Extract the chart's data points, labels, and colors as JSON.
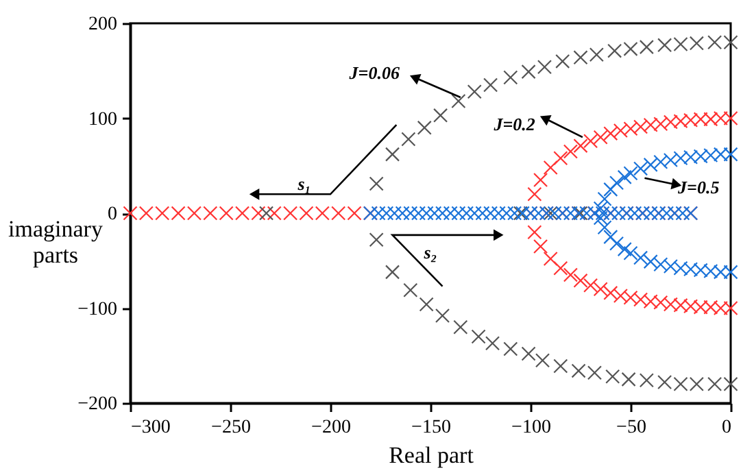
{
  "chart_data": {
    "type": "scatter",
    "xlabel": "Real part",
    "ylabel": "imaginary parts",
    "xlim": [
      -300,
      0
    ],
    "ylim": [
      -200,
      200
    ],
    "xticks": [
      -300,
      -250,
      -200,
      -150,
      -100,
      -50,
      0
    ],
    "yticks": [
      -200,
      -100,
      0,
      100,
      200
    ],
    "marker": "cross",
    "grid": false,
    "annotations": [
      "J=0.06",
      "J=0.2",
      "J=0.5",
      "s₁",
      "s₂"
    ],
    "series": [
      {
        "color": "#ff3333",
        "x": [
          -300,
          -292,
          -284,
          -276,
          -268,
          -260,
          -252,
          -244,
          -236,
          -228,
          -220,
          -212,
          -204,
          -196,
          -188,
          -180,
          -100,
          -92,
          -84,
          -76,
          -68,
          -60,
          -52,
          -44,
          -36,
          -28,
          -20,
          -98,
          -95,
          -90,
          -85,
          -80,
          -75,
          -70,
          -65,
          -60,
          -55,
          -50,
          -45,
          -40,
          -35,
          -30,
          -25,
          -20,
          -15,
          -10,
          -5,
          0,
          -98,
          -95,
          -90,
          -85,
          -80,
          -75,
          -70,
          -65,
          -60,
          -55,
          -50,
          -45,
          -40,
          -35,
          -30,
          -25,
          -20,
          -15,
          -10,
          -5,
          0
        ],
        "values": [
          0,
          0,
          0,
          0,
          0,
          0,
          0,
          0,
          0,
          0,
          0,
          0,
          0,
          0,
          0,
          0,
          0,
          0,
          0,
          0,
          0,
          0,
          0,
          0,
          0,
          0,
          0,
          20,
          35,
          48,
          58,
          65,
          71,
          76,
          80,
          84,
          87,
          89,
          91,
          93,
          94,
          96,
          97,
          98,
          99,
          99,
          100,
          100,
          -20,
          -35,
          -48,
          -58,
          -65,
          -71,
          -76,
          -80,
          -84,
          -87,
          -89,
          -91,
          -93,
          -94,
          -96,
          -97,
          -98,
          -99,
          -99,
          -100,
          -100
        ]
      },
      {
        "color": "#555555",
        "x": [
          -232,
          -105,
          -90,
          -75,
          -177,
          -169,
          -161,
          -153,
          -145,
          -136,
          -128,
          -120,
          -110,
          -101,
          -93,
          -84,
          -75,
          -67,
          -58,
          -50,
          -42,
          -33,
          -25,
          -17,
          -8,
          0,
          -177,
          -169,
          -160,
          -152,
          -144,
          -135,
          -126,
          -119,
          -110,
          -101,
          -94,
          -85,
          -76,
          -68,
          -59,
          -51,
          -42,
          -33,
          -25,
          -17,
          -8,
          0
        ],
        "values": [
          0,
          0,
          0,
          0,
          31,
          62,
          78,
          90,
          103,
          118,
          128,
          135,
          143,
          149,
          154,
          160,
          164,
          167,
          171,
          173,
          175,
          177,
          178,
          179,
          180,
          180,
          -28,
          -62,
          -81,
          -96,
          -108,
          -120,
          -130,
          -137,
          -143,
          -148,
          -155,
          -161,
          -166,
          -168,
          -172,
          -175,
          -176,
          -178,
          -180,
          -180,
          -180,
          -180
        ]
      },
      {
        "color": "#1a73d9",
        "x": [
          -180,
          -176,
          -172,
          -168,
          -164,
          -160,
          -156,
          -152,
          -148,
          -144,
          -140,
          -136,
          -132,
          -128,
          -124,
          -120,
          -116,
          -112,
          -108,
          -104,
          -100,
          -96,
          -92,
          -88,
          -84,
          -80,
          -76,
          -72,
          -68,
          -64,
          -60,
          -56,
          -52,
          -48,
          -44,
          -40,
          -36,
          -32,
          -28,
          -24,
          -20,
          -65,
          -63,
          -60,
          -57,
          -53,
          -50,
          -45,
          -40,
          -35,
          -30,
          -25,
          -20,
          -15,
          -10,
          -5,
          0,
          -65,
          -63,
          -60,
          -57,
          -53,
          -50,
          -45,
          -40,
          -35,
          -30,
          -25,
          -20,
          -15,
          -10,
          -5,
          0
        ],
        "values": [
          0,
          0,
          0,
          0,
          0,
          0,
          0,
          0,
          0,
          0,
          0,
          0,
          0,
          0,
          0,
          0,
          0,
          0,
          0,
          0,
          0,
          0,
          0,
          0,
          0,
          0,
          0,
          0,
          0,
          0,
          0,
          0,
          0,
          0,
          0,
          0,
          0,
          0,
          0,
          0,
          0,
          5,
          15,
          25,
          32,
          38,
          42,
          47,
          51,
          54,
          56,
          58,
          59,
          60,
          61,
          62,
          62,
          -5,
          -15,
          -25,
          -32,
          -38,
          -42,
          -47,
          -51,
          -54,
          -56,
          -58,
          -59,
          -60,
          -61,
          -62,
          -62
        ]
      }
    ]
  }
}
